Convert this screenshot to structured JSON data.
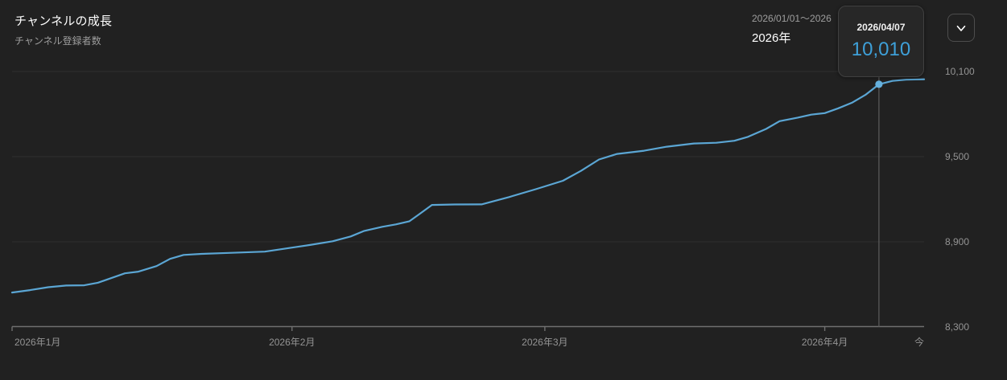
{
  "header": {
    "title": "チャンネルの成長",
    "subtitle": "チャンネル登録者数",
    "date_range": "2026/01/01～2026",
    "period": "2026年"
  },
  "tooltip": {
    "date": "2026/04/07",
    "value": "10,010"
  },
  "controls": {
    "collapse_icon": "chevron-down"
  },
  "colors": {
    "background": "#212121",
    "line_blue": "#5ba6d4",
    "highlight_dot": "#66b1de",
    "value_blue": "#3ea0d9",
    "grid": "#2e2e2e",
    "axis": "#6f6f6f",
    "hover_line": "#5c5c5c",
    "text_primary": "#ffffff",
    "text_secondary": "#9e9e9e",
    "tick_label": "#949494"
  },
  "chart_data": {
    "type": "line",
    "title": "チャンネルの成長",
    "metric": "チャンネル登録者数",
    "grid": true,
    "legend_position": "none",
    "x_axis": {
      "range_days": [
        0,
        101
      ],
      "ticks": [
        {
          "label": "2026年1月",
          "day": 0
        },
        {
          "label": "2026年2月",
          "day": 31
        },
        {
          "label": "2026年3月",
          "day": 59
        },
        {
          "label": "2026年4月",
          "day": 90
        },
        {
          "label": "今",
          "day": 101
        }
      ]
    },
    "y_axis": {
      "range": [
        8300,
        10100
      ],
      "ticks": [
        {
          "label": "8,300",
          "value": 8300
        },
        {
          "label": "8,900",
          "value": 8900
        },
        {
          "label": "9,500",
          "value": 9500
        },
        {
          "label": "10,100",
          "value": 10100
        }
      ]
    },
    "series": [
      {
        "name": "チャンネル登録者数",
        "points": [
          [
            0,
            8543
          ],
          [
            2,
            8560
          ],
          [
            4,
            8580
          ],
          [
            6,
            8592
          ],
          [
            8,
            8594
          ],
          [
            9.5,
            8612
          ],
          [
            11,
            8645
          ],
          [
            12.5,
            8678
          ],
          [
            14,
            8690
          ],
          [
            16,
            8729
          ],
          [
            17.5,
            8780
          ],
          [
            19,
            8808
          ],
          [
            21,
            8815
          ],
          [
            24,
            8822
          ],
          [
            28,
            8831
          ],
          [
            31,
            8859
          ],
          [
            33,
            8878
          ],
          [
            35.5,
            8904
          ],
          [
            37.5,
            8938
          ],
          [
            39,
            8977
          ],
          [
            41,
            9006
          ],
          [
            42.5,
            9023
          ],
          [
            44,
            9045
          ],
          [
            45,
            9090
          ],
          [
            46.5,
            9160
          ],
          [
            49,
            9163
          ],
          [
            52,
            9164
          ],
          [
            55,
            9215
          ],
          [
            58,
            9271
          ],
          [
            61,
            9330
          ],
          [
            63,
            9400
          ],
          [
            65,
            9480
          ],
          [
            67,
            9519
          ],
          [
            70,
            9542
          ],
          [
            72.5,
            9570
          ],
          [
            75.5,
            9593
          ],
          [
            78,
            9598
          ],
          [
            80,
            9612
          ],
          [
            81.5,
            9640
          ],
          [
            83.5,
            9695
          ],
          [
            85,
            9750
          ],
          [
            87,
            9775
          ],
          [
            88.5,
            9796
          ],
          [
            90,
            9807
          ],
          [
            91.5,
            9841
          ],
          [
            93,
            9880
          ],
          [
            94.5,
            9935
          ],
          [
            95.3,
            9975
          ],
          [
            96,
            10010
          ],
          [
            97.5,
            10034
          ],
          [
            99,
            10042
          ],
          [
            101,
            10045
          ]
        ]
      }
    ],
    "highlight": {
      "date": "2026/04/07",
      "day": 96,
      "value": 10010
    }
  }
}
